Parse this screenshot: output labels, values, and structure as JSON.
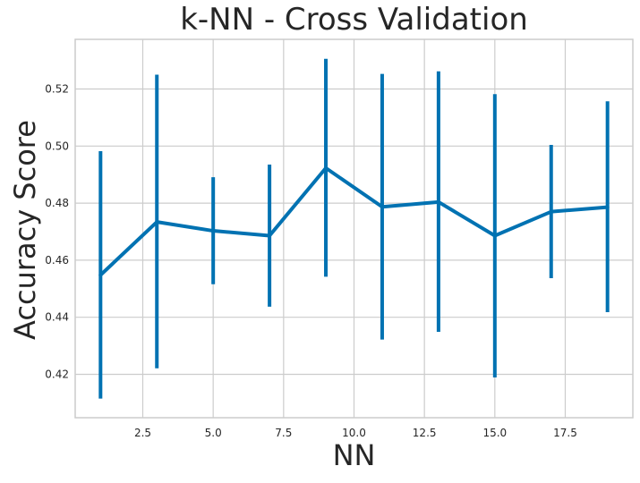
{
  "chart_data": {
    "type": "line",
    "title": "k-NN - Cross Validation",
    "xlabel": "NN",
    "ylabel": "Accuracy Score",
    "x": [
      1,
      3,
      5,
      7,
      9,
      11,
      13,
      15,
      17,
      19
    ],
    "series": [
      {
        "values": [
          0.4548,
          0.4734,
          0.4703,
          0.4686,
          0.4923,
          0.4787,
          0.4804,
          0.4686,
          0.477,
          0.4786
        ],
        "error_low": [
          0.4115,
          0.4221,
          0.4516,
          0.4437,
          0.4542,
          0.4322,
          0.4349,
          0.4189,
          0.4537,
          0.4418
        ],
        "error_high": [
          0.4982,
          0.525,
          0.4891,
          0.4935,
          0.5306,
          0.5253,
          0.5262,
          0.5182,
          0.5004,
          0.5157
        ],
        "color": "#0072b2"
      }
    ],
    "xticks": [
      "2.5",
      "5.0",
      "7.5",
      "10.0",
      "12.5",
      "15.0",
      "17.5"
    ],
    "xtick_values": [
      2.5,
      5.0,
      7.5,
      10.0,
      12.5,
      15.0,
      17.5
    ],
    "yticks": [
      "0.42",
      "0.44",
      "0.46",
      "0.48",
      "0.50",
      "0.52"
    ],
    "ytick_values": [
      0.42,
      0.44,
      0.46,
      0.48,
      0.5,
      0.52
    ],
    "xlim": [
      0.1,
      19.9
    ],
    "ylim": [
      0.4048,
      0.5374
    ],
    "grid": true,
    "colors": {
      "line": "#0072b2",
      "grid": "#cccccc",
      "background": "#ffffff",
      "text": "#262626"
    }
  }
}
